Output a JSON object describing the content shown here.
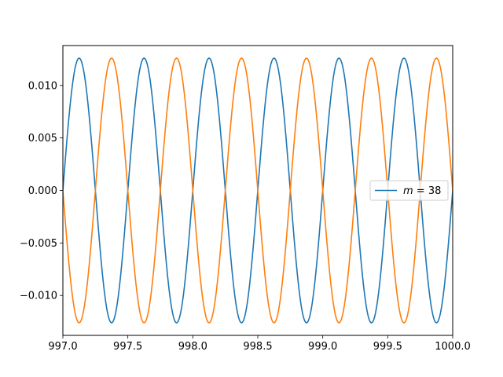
{
  "chart_data": {
    "type": "line",
    "title": "",
    "xlabel": "",
    "ylabel": "",
    "xlim": [
      997.0,
      1000.0
    ],
    "ylim": [
      -0.0138,
      0.0138
    ],
    "grid": false,
    "legend_placement": "center-right",
    "x_ticks": [
      997.0,
      997.5,
      998.0,
      998.5,
      999.0,
      999.5,
      1000.0
    ],
    "x_tick_labels": [
      "997.0",
      "997.5",
      "998.0",
      "998.5",
      "999.0",
      "999.5",
      "1000.0"
    ],
    "y_ticks": [
      -0.01,
      -0.005,
      0.0,
      0.005,
      0.01
    ],
    "y_tick_labels": [
      "−0.010",
      "−0.005",
      "0.000",
      "0.005",
      "0.010"
    ],
    "legend": [
      {
        "label_var": "m",
        "label_eq": " = 38",
        "color": "#1f77b4"
      }
    ],
    "series": [
      {
        "color": "#1f77b4",
        "function": "sine",
        "amplitude": 0.0126,
        "period": 0.5,
        "phase_x0": 997.0,
        "peaks_at": [
          997.125,
          997.625,
          998.125,
          998.625,
          999.125,
          999.625
        ],
        "troughs_at": [
          997.375,
          997.875,
          998.375,
          998.875,
          999.375,
          999.875
        ]
      },
      {
        "color": "#ff7f0e",
        "function": "negative-sine",
        "amplitude": 0.0126,
        "period": 0.5,
        "phase_x0": 997.0,
        "peaks_at": [
          997.375,
          997.875,
          998.375,
          998.875,
          999.375,
          999.875
        ],
        "troughs_at": [
          997.125,
          997.625,
          998.125,
          998.625,
          999.125,
          999.625
        ]
      }
    ]
  }
}
